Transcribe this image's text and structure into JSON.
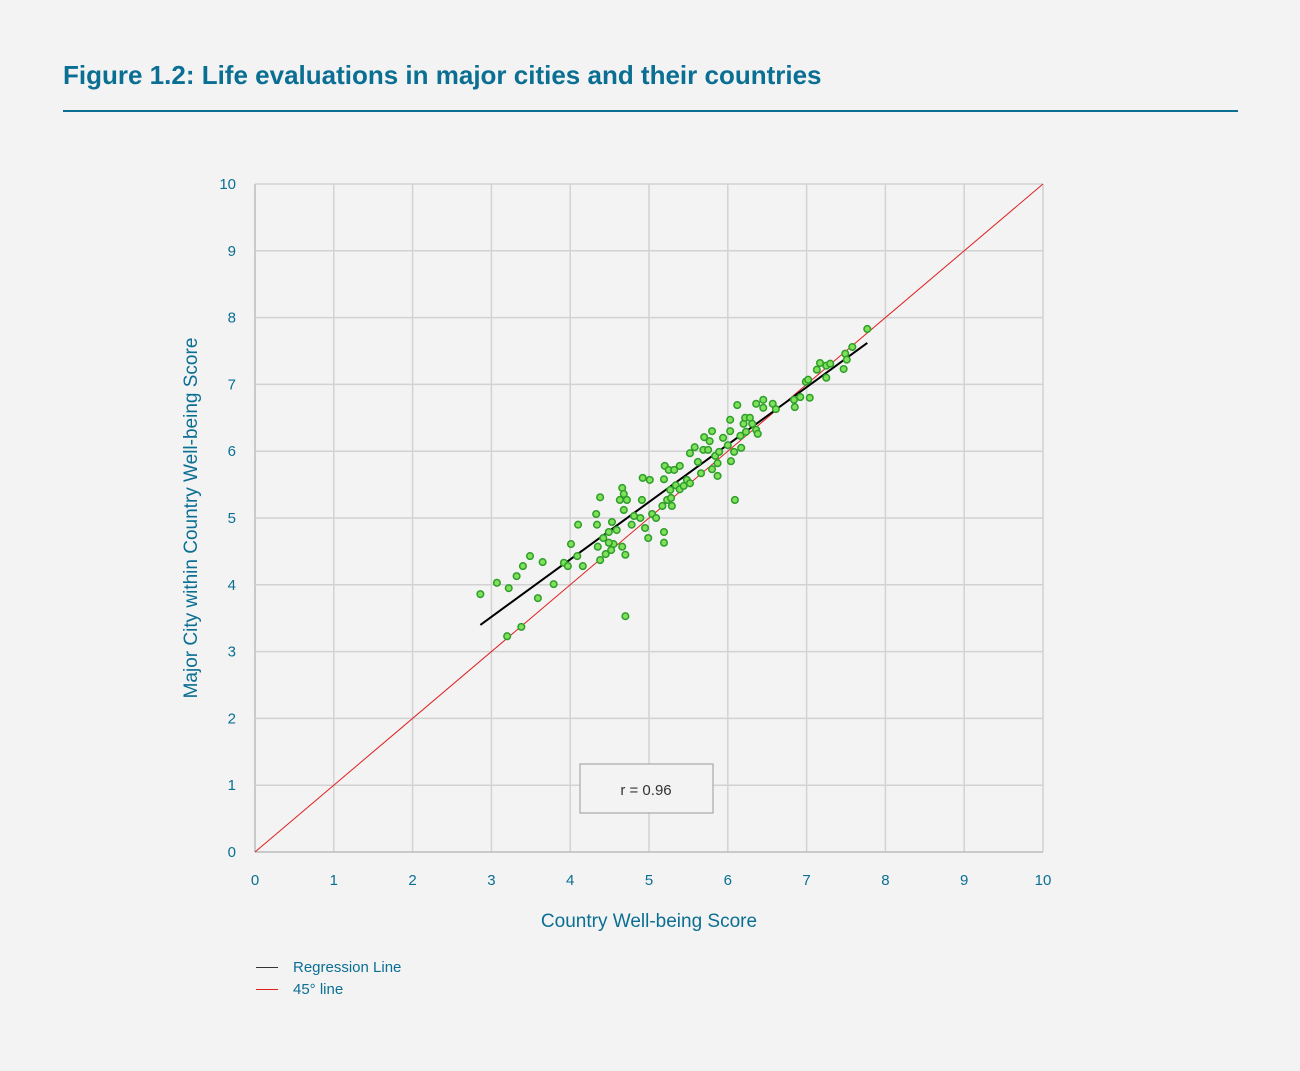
{
  "title": "Figure 1.2: Life evaluations in major cities and their countries",
  "colors": {
    "title": "#0a6f93",
    "points_fill": "#7fe05a",
    "points_stroke": "#2e9e2a",
    "regression": "#000000",
    "diagonal": "#e02020",
    "grid": "#d2d2d2"
  },
  "chart_data": {
    "type": "scatter",
    "xlabel": "Country Well-being Score",
    "ylabel": "Major City within Country Well-being Score",
    "xlim": [
      0,
      10
    ],
    "ylim": [
      0,
      10
    ],
    "xticks": [
      "0",
      "1",
      "2",
      "3",
      "4",
      "5",
      "6",
      "7",
      "8",
      "9",
      "10"
    ],
    "yticks": [
      "0",
      "1",
      "2",
      "3",
      "4",
      "5",
      "6",
      "7",
      "8",
      "9",
      "10"
    ],
    "grid": true,
    "legend_placement": "bottom-left",
    "annotation": "r = 0.96",
    "legend": [
      {
        "label": "Regression Line",
        "color": "#333333"
      },
      {
        "label": "45° line",
        "color": "#e02020"
      }
    ],
    "regression_line": [
      [
        2.86,
        3.4
      ],
      [
        7.77,
        7.62
      ]
    ],
    "diagonal_line": [
      [
        0,
        0
      ],
      [
        10,
        10
      ]
    ],
    "points": [
      [
        2.86,
        3.86
      ],
      [
        3.07,
        4.03
      ],
      [
        3.22,
        3.95
      ],
      [
        3.2,
        3.23
      ],
      [
        3.38,
        3.37
      ],
      [
        3.32,
        4.13
      ],
      [
        3.4,
        4.28
      ],
      [
        3.49,
        4.43
      ],
      [
        3.59,
        3.8
      ],
      [
        3.65,
        4.34
      ],
      [
        3.79,
        4.01
      ],
      [
        3.92,
        4.33
      ],
      [
        3.97,
        4.28
      ],
      [
        4.01,
        4.61
      ],
      [
        4.09,
        4.43
      ],
      [
        4.1,
        4.9
      ],
      [
        4.16,
        4.28
      ],
      [
        4.33,
        5.06
      ],
      [
        4.38,
        5.31
      ],
      [
        4.34,
        4.9
      ],
      [
        4.35,
        4.57
      ],
      [
        4.38,
        4.37
      ],
      [
        4.42,
        4.7
      ],
      [
        4.45,
        4.46
      ],
      [
        4.49,
        4.79
      ],
      [
        4.53,
        4.94
      ],
      [
        4.55,
        4.61
      ],
      [
        4.49,
        4.63
      ],
      [
        4.52,
        4.52
      ],
      [
        4.59,
        4.82
      ],
      [
        4.63,
        5.27
      ],
      [
        4.66,
        5.45
      ],
      [
        4.68,
        5.12
      ],
      [
        4.68,
        5.36
      ],
      [
        4.72,
        5.27
      ],
      [
        4.66,
        4.57
      ],
      [
        4.7,
        4.45
      ],
      [
        4.7,
        3.53
      ],
      [
        4.78,
        4.9
      ],
      [
        4.81,
        5.03
      ],
      [
        4.89,
        5.0
      ],
      [
        4.91,
        5.27
      ],
      [
        4.92,
        5.6
      ],
      [
        4.95,
        4.85
      ],
      [
        4.99,
        4.7
      ],
      [
        5.01,
        5.57
      ],
      [
        5.04,
        5.06
      ],
      [
        5.09,
        5.0
      ],
      [
        5.17,
        5.18
      ],
      [
        5.19,
        5.58
      ],
      [
        5.2,
        5.78
      ],
      [
        5.19,
        4.79
      ],
      [
        5.19,
        4.63
      ],
      [
        5.23,
        5.27
      ],
      [
        5.25,
        5.72
      ],
      [
        5.27,
        5.42
      ],
      [
        5.28,
        5.3
      ],
      [
        5.29,
        5.18
      ],
      [
        5.32,
        5.72
      ],
      [
        5.34,
        5.49
      ],
      [
        5.39,
        5.78
      ],
      [
        5.39,
        5.43
      ],
      [
        5.44,
        5.48
      ],
      [
        5.48,
        5.57
      ],
      [
        5.52,
        5.97
      ],
      [
        5.52,
        5.52
      ],
      [
        5.58,
        6.06
      ],
      [
        5.62,
        5.84
      ],
      [
        5.66,
        5.67
      ],
      [
        5.69,
        6.02
      ],
      [
        5.7,
        6.21
      ],
      [
        5.75,
        6.02
      ],
      [
        5.77,
        6.15
      ],
      [
        5.8,
        6.3
      ],
      [
        5.8,
        5.73
      ],
      [
        5.84,
        5.93
      ],
      [
        5.87,
        5.82
      ],
      [
        5.87,
        5.63
      ],
      [
        5.89,
        5.99
      ],
      [
        5.94,
        6.2
      ],
      [
        6.0,
        6.09
      ],
      [
        6.03,
        6.47
      ],
      [
        6.04,
        5.85
      ],
      [
        6.03,
        6.3
      ],
      [
        6.08,
        5.99
      ],
      [
        6.12,
        6.69
      ],
      [
        6.09,
        5.27
      ],
      [
        6.16,
        6.23
      ],
      [
        6.17,
        6.05
      ],
      [
        6.2,
        6.41
      ],
      [
        6.23,
        6.29
      ],
      [
        6.22,
        6.5
      ],
      [
        6.28,
        6.5
      ],
      [
        6.31,
        6.41
      ],
      [
        6.36,
        6.71
      ],
      [
        6.36,
        6.32
      ],
      [
        6.38,
        6.26
      ],
      [
        6.45,
        6.77
      ],
      [
        6.45,
        6.65
      ],
      [
        6.57,
        6.71
      ],
      [
        6.61,
        6.63
      ],
      [
        6.84,
        6.77
      ],
      [
        6.85,
        6.66
      ],
      [
        6.92,
        6.81
      ],
      [
        6.99,
        7.04
      ],
      [
        7.02,
        7.07
      ],
      [
        7.04,
        6.8
      ],
      [
        7.13,
        7.22
      ],
      [
        7.17,
        7.32
      ],
      [
        7.25,
        7.1
      ],
      [
        7.25,
        7.28
      ],
      [
        7.3,
        7.31
      ],
      [
        7.47,
        7.23
      ],
      [
        7.49,
        7.46
      ],
      [
        7.51,
        7.37
      ],
      [
        7.58,
        7.56
      ],
      [
        7.77,
        7.83
      ]
    ]
  }
}
